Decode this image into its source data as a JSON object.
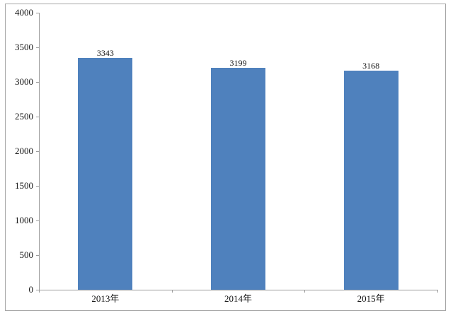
{
  "chart_data": {
    "type": "bar",
    "title": "",
    "categories": [
      "2013年",
      "2014年",
      "2015年"
    ],
    "values": [
      3343,
      3199,
      3168
    ],
    "data_labels": [
      "3343",
      "3199",
      "3168"
    ],
    "xlabel": "",
    "ylabel": "",
    "ylim": [
      0,
      4000
    ],
    "ytick_step": 500,
    "ytick_labels": [
      "0",
      "500",
      "1000",
      "1500",
      "2000",
      "2500",
      "3000",
      "3500",
      "4000"
    ],
    "legend": "none",
    "grid": "off",
    "bar_color": "#4f81bd",
    "axis_color": "#9b9b9b",
    "chart_border_color": "#a6a6a6",
    "text_color": "#111111",
    "background_color": "#ffffff"
  }
}
